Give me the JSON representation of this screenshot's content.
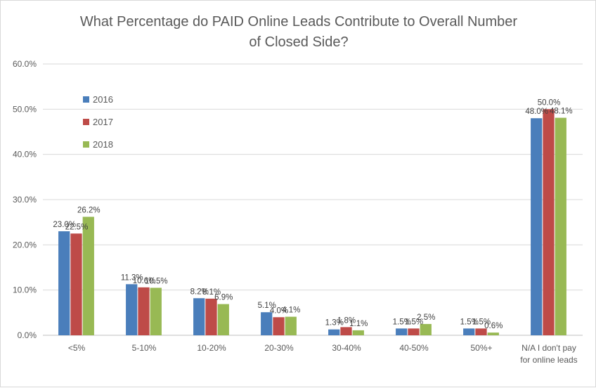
{
  "chart_data": {
    "type": "bar",
    "title_lines": [
      "What Percentage do PAID Online Leads Contribute to Overall Number",
      "of Closed Side?"
    ],
    "categories": [
      "<5%",
      "5-10%",
      "10-20%",
      "20-30%",
      "30-40%",
      "40-50%",
      "50%+",
      "N/A I don't pay for online leads"
    ],
    "category_label_lines": [
      [
        "<5%"
      ],
      [
        "5-10%"
      ],
      [
        "10-20%"
      ],
      [
        "20-30%"
      ],
      [
        "30-40%"
      ],
      [
        "40-50%"
      ],
      [
        "50%+"
      ],
      [
        "N/A I don't pay",
        "for online leads"
      ]
    ],
    "series": [
      {
        "name": "2016",
        "color": "#4a7ebb",
        "values": [
          23.0,
          11.3,
          8.2,
          5.1,
          1.3,
          1.5,
          1.5,
          48.0
        ],
        "labels": [
          "23.0%",
          "11.3%",
          "8.2%",
          "5.1%",
          "1.3%",
          "1.5%",
          "1.5%",
          "48.0%"
        ]
      },
      {
        "name": "2017",
        "color": "#be4b48",
        "values": [
          22.5,
          10.6,
          8.1,
          4.0,
          1.8,
          1.5,
          1.5,
          50.0
        ],
        "labels": [
          "22.5%",
          "10.6%",
          "8.1%",
          "4.0%",
          "1.8%",
          "1.5%",
          "1.5%",
          "50.0%"
        ]
      },
      {
        "name": "2018",
        "color": "#98b954",
        "values": [
          26.2,
          10.5,
          6.9,
          4.1,
          1.1,
          2.5,
          0.6,
          48.1
        ],
        "labels": [
          "26.2%",
          "10.5%",
          "6.9%",
          "4.1%",
          "1.1%",
          "2.5%",
          "0.6%",
          "48.1%"
        ]
      }
    ],
    "yticks": [
      "0.0%",
      "10.0%",
      "20.0%",
      "30.0%",
      "40.0%",
      "50.0%",
      "60.0%"
    ],
    "ylim": [
      0,
      60
    ],
    "xlabel": "",
    "ylabel": "",
    "grid": true,
    "legend_position": "top-left"
  }
}
